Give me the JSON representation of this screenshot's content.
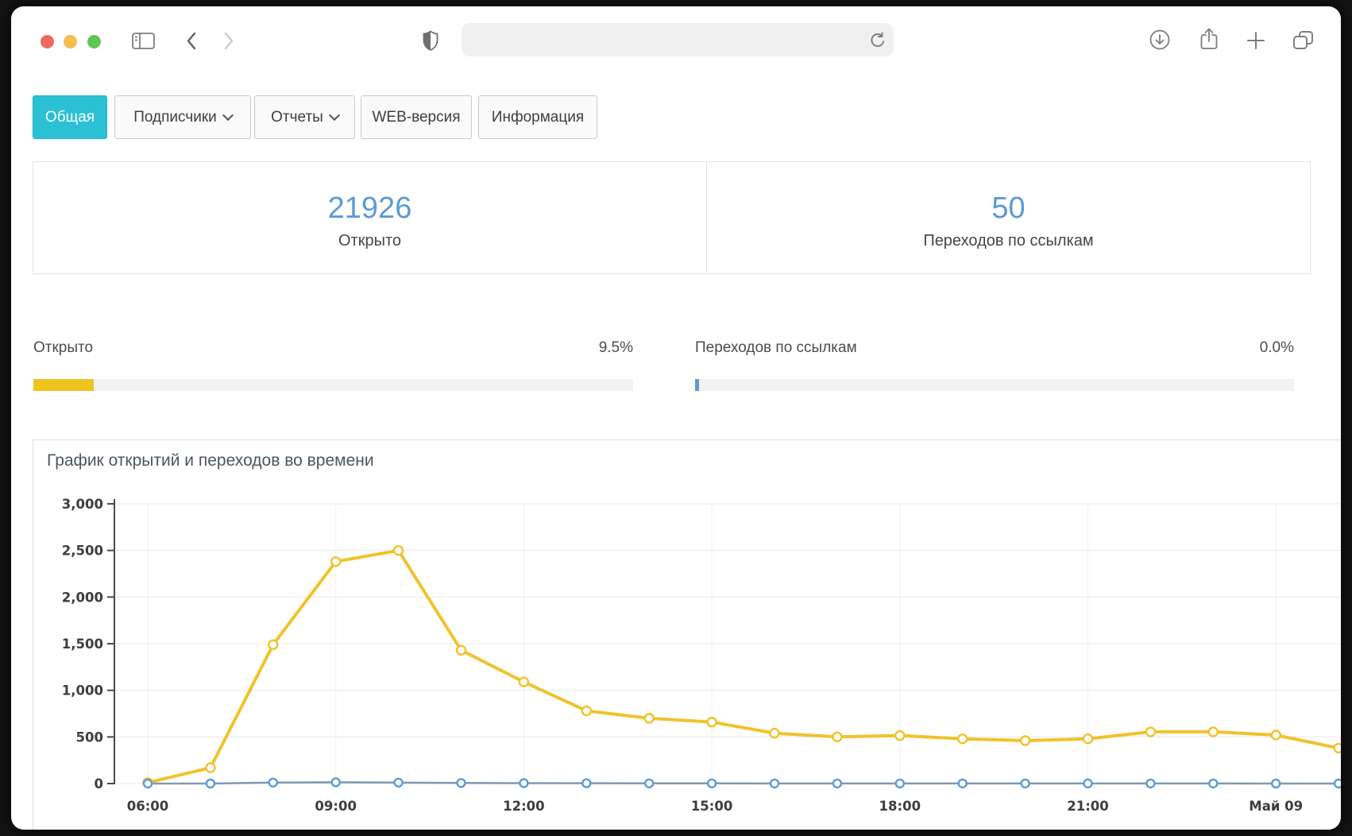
{
  "browser": {
    "url_value": "",
    "traffic_colors": {
      "close": "#EE6A5F",
      "minimize": "#F5BD4F",
      "zoom": "#61C554"
    }
  },
  "nav": {
    "active_color": "#2BC0D4",
    "tabs": [
      {
        "label": "Общая",
        "active": true,
        "dropdown": false
      },
      {
        "label": "Подписчики",
        "active": false,
        "dropdown": true
      },
      {
        "label": "Отчеты",
        "active": false,
        "dropdown": true
      },
      {
        "label": "WEB-версия",
        "active": false,
        "dropdown": false
      },
      {
        "label": "Информация",
        "active": false,
        "dropdown": false
      }
    ]
  },
  "stats": {
    "value_color": "#5B9AD2",
    "cards": [
      {
        "value": "21926",
        "label": "Открыто"
      },
      {
        "value": "50",
        "label": "Переходов по ссылкам"
      }
    ]
  },
  "progress": {
    "bars": [
      {
        "label": "Открыто",
        "percent_text": "9.5%",
        "percent_width": 10,
        "color": "#EFC41F"
      },
      {
        "label": "Переходов по ссылкам",
        "percent_text": "0.0%",
        "percent_width": 0.6,
        "color": "#5B9BD5"
      }
    ]
  },
  "chart_data": {
    "type": "line",
    "title": "График открытий и переходов во времени",
    "xlabel": "",
    "ylabel": "",
    "ylim": [
      0,
      3000
    ],
    "grid": true,
    "legend": false,
    "x": [
      "06:00",
      "07:00",
      "08:00",
      "09:00",
      "10:00",
      "11:00",
      "12:00",
      "13:00",
      "14:00",
      "15:00",
      "16:00",
      "17:00",
      "18:00",
      "19:00",
      "20:00",
      "21:00",
      "22:00",
      "23:00",
      "00:00",
      "01:00"
    ],
    "x_tick_labels": [
      {
        "index": 0,
        "label": "06:00",
        "bold": false
      },
      {
        "index": 3,
        "label": "09:00",
        "bold": false
      },
      {
        "index": 6,
        "label": "12:00",
        "bold": false
      },
      {
        "index": 9,
        "label": "15:00",
        "bold": false
      },
      {
        "index": 12,
        "label": "18:00",
        "bold": false
      },
      {
        "index": 15,
        "label": "21:00",
        "bold": false
      },
      {
        "index": 18,
        "label": "Май 09",
        "bold": true
      }
    ],
    "y_ticks": [
      {
        "value": 0,
        "label": "0"
      },
      {
        "value": 500,
        "label": "500"
      },
      {
        "value": 1000,
        "label": "1,000"
      },
      {
        "value": 1500,
        "label": "1,500"
      },
      {
        "value": 2000,
        "label": "2,000"
      },
      {
        "value": 2500,
        "label": "2,500"
      },
      {
        "value": 3000,
        "label": "3,000"
      }
    ],
    "series": [
      {
        "id": "opens",
        "color": "#EFC32B",
        "marker_color": "#EFC32B",
        "line_width": 4,
        "marker_r": 5.5,
        "values": [
          10,
          170,
          1490,
          2380,
          2500,
          1430,
          1090,
          780,
          700,
          660,
          540,
          500,
          515,
          480,
          460,
          480,
          555,
          555,
          520,
          380
        ]
      },
      {
        "id": "clicks",
        "color": "#7E99B4",
        "marker_color": "#5B9BD5",
        "line_width": 2.5,
        "marker_r": 5,
        "values": [
          0,
          0,
          10,
          14,
          10,
          6,
          4,
          3,
          2,
          2,
          1,
          1,
          1,
          1,
          1,
          1,
          1,
          1,
          0,
          0
        ]
      }
    ]
  }
}
